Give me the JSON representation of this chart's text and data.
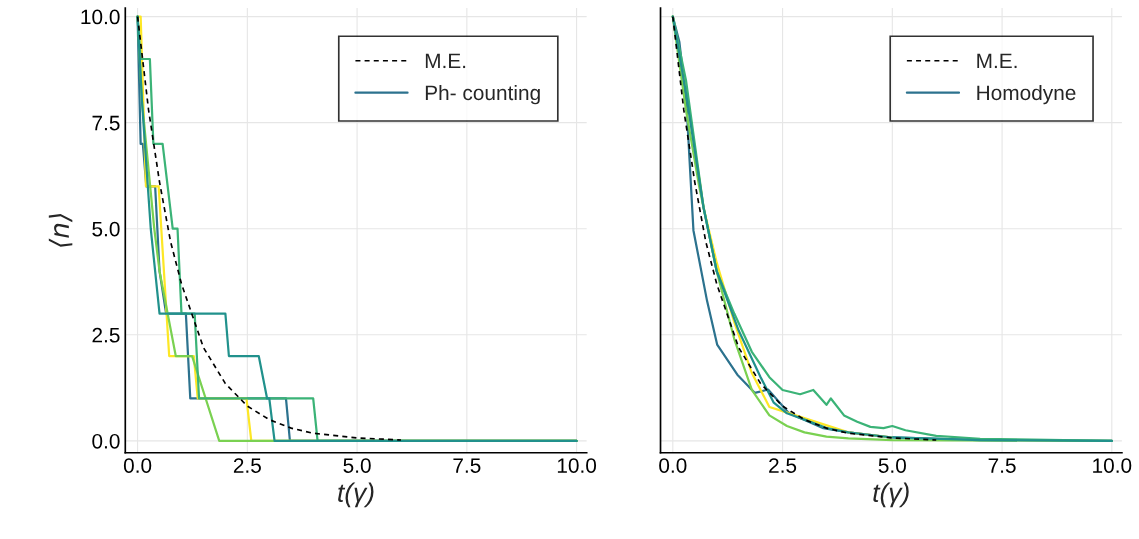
{
  "chart_data": [
    {
      "type": "line",
      "xlabel": "t(γ)",
      "ylabel": "⟨n⟩",
      "xlim": [
        -0.28,
        10.23
      ],
      "ylim": [
        -0.28,
        10.2
      ],
      "xticks": [
        {
          "value": 0,
          "label": "0.0"
        },
        {
          "value": 2.5,
          "label": "2.5"
        },
        {
          "value": 5,
          "label": "5.0"
        },
        {
          "value": 7.5,
          "label": "7.5"
        },
        {
          "value": 10,
          "label": "10.0"
        }
      ],
      "yticks": [
        {
          "value": 0,
          "label": "0.0"
        },
        {
          "value": 2.5,
          "label": "2.5"
        },
        {
          "value": 5,
          "label": "5.0"
        },
        {
          "value": 7.5,
          "label": "7.5"
        },
        {
          "value": 10,
          "label": "10.0"
        }
      ],
      "grid": true,
      "legend": "top right",
      "series": [
        {
          "name": "M.E.",
          "color": "#000000",
          "line_style": "dashed",
          "x": [
            0,
            0.25,
            0.5,
            0.75,
            1,
            1.5,
            2,
            2.5,
            3,
            3.5,
            4,
            5,
            6
          ],
          "values": [
            10,
            7.8,
            6.1,
            4.7,
            3.7,
            2.2,
            1.35,
            0.82,
            0.5,
            0.3,
            0.18,
            0.07,
            0.02
          ]
        },
        {
          "name": "Ph- counting",
          "color": "#2c728e",
          "x": [
            0,
            0.07,
            0.12,
            0.2,
            0.4,
            0.5,
            0.65,
            1.1,
            1.2,
            3.38,
            3.47,
            10
          ],
          "values": [
            10,
            7,
            7,
            6,
            6,
            4,
            3,
            3,
            1,
            1,
            0,
            0
          ]
        },
        {
          "color": "#fde725",
          "x": [
            0,
            0.07,
            0.19,
            0.48,
            0.72,
            1.28,
            1.37,
            2.48,
            2.59,
            10
          ],
          "values": [
            10,
            10,
            6,
            6,
            2,
            2,
            1,
            1,
            0,
            0
          ]
        },
        {
          "color": "#7ad151",
          "x": [
            0,
            0.1,
            0.38,
            0.5,
            0.87,
            1.24,
            1.86,
            10
          ],
          "values": [
            10,
            8,
            5,
            4,
            2,
            2,
            0,
            0
          ]
        },
        {
          "color": "#3bb377",
          "x": [
            0,
            0.07,
            0.28,
            0.36,
            0.57,
            0.8,
            0.91,
            1.0,
            1.3,
            1.4,
            4.0,
            4.1,
            10
          ],
          "values": [
            10,
            9,
            9,
            7,
            7,
            5,
            5,
            3,
            3,
            1,
            1,
            0,
            0
          ]
        },
        {
          "color": "#21918c",
          "x": [
            0,
            0.1,
            0.3,
            0.5,
            2.0,
            2.08,
            2.76,
            2.95,
            3.0,
            3.12,
            10
          ],
          "values": [
            10,
            8,
            5,
            3,
            3,
            2,
            2,
            1,
            1,
            0,
            0
          ]
        }
      ]
    },
    {
      "type": "line",
      "xlabel": "t(γ)",
      "xlim": [
        -0.28,
        10.23
      ],
      "ylim": [
        -0.28,
        10.2
      ],
      "tick_labels": "x",
      "xticks": [
        {
          "value": 0,
          "label": "0.0"
        },
        {
          "value": 2.5,
          "label": "2.5"
        },
        {
          "value": 5,
          "label": "5.0"
        },
        {
          "value": 7.5,
          "label": "7.5"
        },
        {
          "value": 10,
          "label": "10.0"
        }
      ],
      "yticks": [
        {
          "value": 0,
          "label": null
        },
        {
          "value": 2.5,
          "label": null
        },
        {
          "value": 5,
          "label": null
        },
        {
          "value": 7.5,
          "label": null
        },
        {
          "value": 10,
          "label": null
        }
      ],
      "grid": true,
      "legend": "top right",
      "series": [
        {
          "name": "M.E.",
          "color": "#000000",
          "line_style": "dashed",
          "x": [
            0,
            0.25,
            0.5,
            0.75,
            1,
            1.5,
            2,
            2.5,
            3,
            3.5,
            4,
            5,
            6
          ],
          "values": [
            10,
            7.8,
            6.1,
            4.7,
            3.7,
            2.2,
            1.35,
            0.82,
            0.5,
            0.3,
            0.18,
            0.07,
            0.02
          ]
        },
        {
          "name": "Homodyne",
          "color": "#2c728e",
          "x": [
            0,
            0.15,
            0.31,
            0.47,
            0.78,
            1.01,
            1.47,
            1.87,
            2.17,
            2.64,
            3.43,
            4.0,
            5,
            7,
            10
          ],
          "values": [
            10,
            9.4,
            7.96,
            4.96,
            3.3,
            2.27,
            1.56,
            1.13,
            1.21,
            0.66,
            0.3,
            0.2,
            0.08,
            0.02,
            0
          ]
        },
        {
          "color": "#fde725",
          "x": [
            0,
            0.3,
            0.7,
            1.0,
            1.4,
            1.8,
            2.2,
            2.5,
            2.8,
            3.1,
            3.4,
            3.7,
            4,
            5
          ],
          "values": [
            10,
            8.3,
            5.5,
            4.2,
            2.8,
            1.6,
            0.8,
            0.7,
            0.6,
            0.5,
            0.4,
            0.3,
            0.2,
            0.08
          ]
        },
        {
          "color": "#7ad151",
          "x": [
            0,
            0.3,
            0.6,
            1.0,
            1.4,
            1.8,
            2.2,
            2.6,
            3,
            3.5,
            4,
            5,
            10
          ],
          "values": [
            10,
            7.8,
            6.0,
            4.0,
            2.4,
            1.2,
            0.6,
            0.35,
            0.2,
            0.1,
            0.06,
            0.02,
            0
          ]
        },
        {
          "color": "#3bb377",
          "x": [
            0,
            0.3,
            0.7,
            1.0,
            1.4,
            1.8,
            2.2,
            2.5,
            2.9,
            3.2,
            3.5,
            3.6,
            3.9,
            4.2,
            4.5,
            4.8,
            5.0,
            5.3,
            6,
            7,
            10
          ],
          "values": [
            10,
            8.5,
            5.5,
            4.0,
            3.0,
            2.1,
            1.5,
            1.2,
            1.1,
            1.2,
            0.85,
            1.0,
            0.6,
            0.45,
            0.33,
            0.3,
            0.35,
            0.25,
            0.12,
            0.05,
            0
          ]
        },
        {
          "color": "#21918c",
          "x": [
            0,
            0.3,
            0.7,
            1.0,
            1.5,
            2.0,
            2.3,
            2.6,
            3.0,
            3.5,
            4,
            5,
            7,
            10
          ],
          "values": [
            10,
            8.2,
            5.5,
            4.0,
            2.6,
            1.5,
            0.9,
            0.65,
            0.5,
            0.3,
            0.2,
            0.08,
            0.02,
            0
          ]
        }
      ]
    }
  ]
}
